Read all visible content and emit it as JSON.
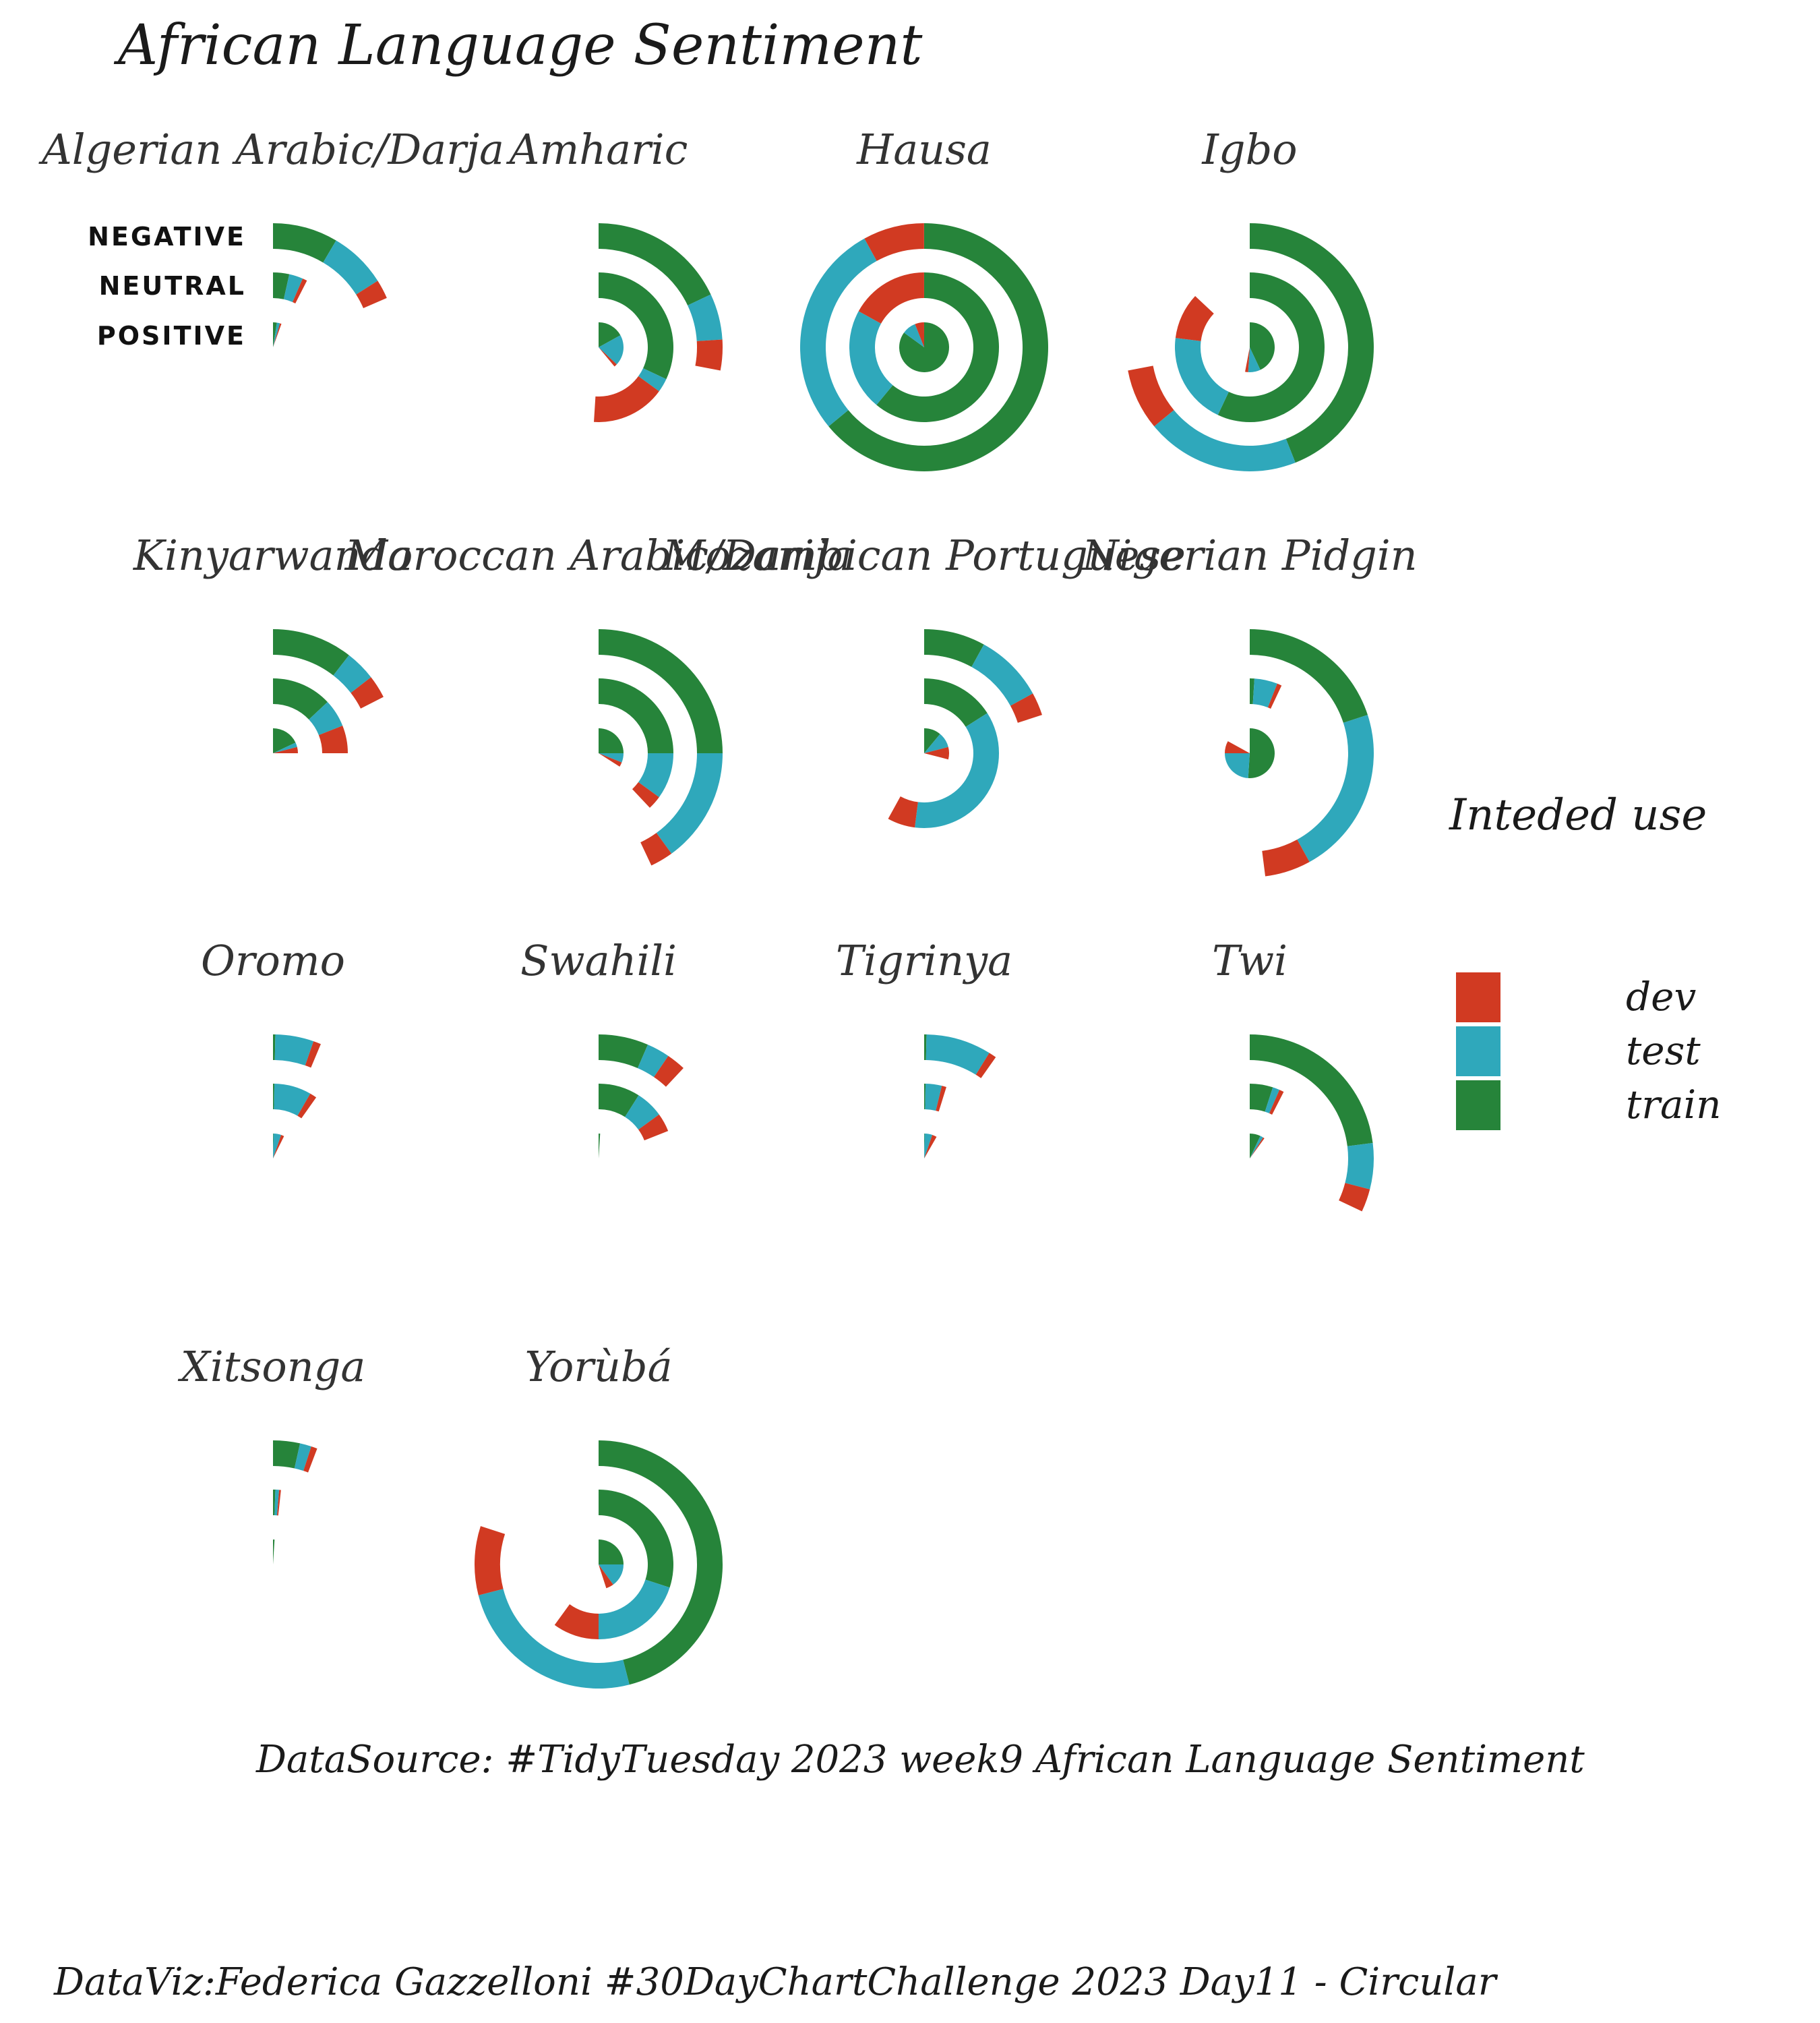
{
  "title": "African Language Sentiment",
  "caption_source": "DataSource: #TidyTuesday 2023 week9 African Language Sentiment",
  "caption_author": "DataViz:Federica Gazzelloni #30DayChartChallenge 2023 Day11 - Circular",
  "legend": {
    "title": "Inteded use",
    "items": [
      {
        "label": "dev",
        "color": "#d13a22"
      },
      {
        "label": "test",
        "color": "#2fa8bb"
      },
      {
        "label": "train",
        "color": "#26843a"
      }
    ]
  },
  "chart_data": {
    "type": "radial_stacked_bar",
    "rings": [
      "NEGATIVE",
      "NEUTRAL",
      "POSITIVE"
    ],
    "segments": [
      "train",
      "test",
      "dev"
    ],
    "max_turns": 1.0,
    "languages": [
      {
        "name": "Algerian Arabic/Darja",
        "values": {
          "NEGATIVE": {
            "train": 0.085,
            "test": 0.075,
            "dev": 0.025
          },
          "NEUTRAL": {
            "train": 0.035,
            "test": 0.03,
            "dev": 0.01
          },
          "POSITIVE": {
            "train": 0.025,
            "test": 0.02,
            "dev": 0.01
          }
        }
      },
      {
        "name": "Amharic",
        "values": {
          "NEGATIVE": {
            "train": 0.18,
            "test": 0.06,
            "dev": 0.04
          },
          "NEUTRAL": {
            "train": 0.32,
            "test": 0.03,
            "dev": 0.16
          },
          "POSITIVE": {
            "train": 0.17,
            "test": 0.2,
            "dev": 0.02
          }
        }
      },
      {
        "name": "Hausa",
        "values": {
          "NEGATIVE": {
            "train": 0.64,
            "test": 0.28,
            "dev": 0.08
          },
          "NEUTRAL": {
            "train": 0.61,
            "test": 0.22,
            "dev": 0.17
          },
          "POSITIVE": {
            "train": 0.85,
            "test": 0.09,
            "dev": 0.06
          }
        }
      },
      {
        "name": "Igbo",
        "values": {
          "NEGATIVE": {
            "train": 0.44,
            "test": 0.2,
            "dev": 0.08
          },
          "NEUTRAL": {
            "train": 0.57,
            "test": 0.2,
            "dev": 0.1
          },
          "POSITIVE": {
            "train": 0.43,
            "test": 0.08,
            "dev": 0.02
          }
        }
      },
      {
        "name": "Kinyarwanda",
        "values": {
          "NEGATIVE": {
            "train": 0.105,
            "test": 0.04,
            "dev": 0.03
          },
          "NEUTRAL": {
            "train": 0.13,
            "test": 0.06,
            "dev": 0.06
          },
          "POSITIVE": {
            "train": 0.18,
            "test": 0.03,
            "dev": 0.04
          }
        }
      },
      {
        "name": "Moroccan Arabic/Darija",
        "values": {
          "NEGATIVE": {
            "train": 0.25,
            "test": 0.15,
            "dev": 0.03
          },
          "NEUTRAL": {
            "train": 0.25,
            "test": 0.1,
            "dev": 0.03
          },
          "POSITIVE": {
            "train": 0.25,
            "test": 0.06,
            "dev": 0.03
          }
        }
      },
      {
        "name": "Mozambican Portuguese",
        "values": {
          "NEGATIVE": {
            "train": 0.08,
            "test": 0.09,
            "dev": 0.03
          },
          "NEUTRAL": {
            "train": 0.16,
            "test": 0.36,
            "dev": 0.06
          },
          "POSITIVE": {
            "train": 0.11,
            "test": 0.1,
            "dev": 0.08
          }
        }
      },
      {
        "name": "Nigerian Pidgin",
        "values": {
          "NEGATIVE": {
            "train": 0.2,
            "test": 0.22,
            "dev": 0.06
          },
          "NEUTRAL": {
            "train": 0.01,
            "test": 0.05,
            "dev": 0.01
          },
          "POSITIVE": {
            "train": 0.51,
            "test": 0.24,
            "dev": 0.08
          }
        }
      },
      {
        "name": "Oromo",
        "values": {
          "NEGATIVE": {
            "train": 0.003,
            "test": 0.05,
            "dev": 0.01
          },
          "NEUTRAL": {
            "train": 0.003,
            "test": 0.08,
            "dev": 0.015
          },
          "POSITIVE": {
            "train": 0.003,
            "test": 0.05,
            "dev": 0.02
          }
        }
      },
      {
        "name": "Swahili",
        "values": {
          "NEGATIVE": {
            "train": 0.065,
            "test": 0.03,
            "dev": 0.025
          },
          "NEUTRAL": {
            "train": 0.09,
            "test": 0.06,
            "dev": 0.04
          },
          "POSITIVE": {
            "train": 0.01,
            "test": 0.0,
            "dev": 0.0
          }
        }
      },
      {
        "name": "Tigrinya",
        "values": {
          "NEGATIVE": {
            "train": 0.003,
            "test": 0.085,
            "dev": 0.01
          },
          "NEUTRAL": {
            "train": 0.003,
            "test": 0.035,
            "dev": 0.01
          },
          "POSITIVE": {
            "train": 0.003,
            "test": 0.05,
            "dev": 0.03
          }
        }
      },
      {
        "name": "Twi",
        "values": {
          "NEGATIVE": {
            "train": 0.23,
            "test": 0.06,
            "dev": 0.03
          },
          "NEUTRAL": {
            "train": 0.05,
            "test": 0.015,
            "dev": 0.01
          },
          "POSITIVE": {
            "train": 0.07,
            "test": 0.02,
            "dev": 0.01
          }
        }
      },
      {
        "name": "Xitsonga",
        "values": {
          "NEGATIVE": {
            "train": 0.035,
            "test": 0.015,
            "dev": 0.008
          },
          "NEUTRAL": {
            "train": 0.005,
            "test": 0.008,
            "dev": 0.004
          },
          "POSITIVE": {
            "train": 0.01,
            "test": 0.0,
            "dev": 0.0
          }
        }
      },
      {
        "name": "Yorùbá",
        "values": {
          "NEGATIVE": {
            "train": 0.46,
            "test": 0.25,
            "dev": 0.09
          },
          "NEUTRAL": {
            "train": 0.3,
            "test": 0.2,
            "dev": 0.1
          },
          "POSITIVE": {
            "train": 0.25,
            "test": 0.15,
            "dev": 0.05
          }
        }
      }
    ]
  }
}
